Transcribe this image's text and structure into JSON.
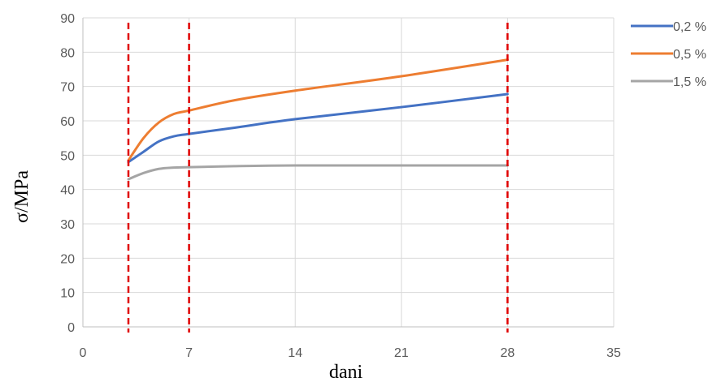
{
  "chart_data": {
    "type": "line",
    "title": "",
    "xlabel": "dani",
    "ylabel": "σ/MPa",
    "xlim": [
      0,
      35
    ],
    "ylim": [
      0,
      90
    ],
    "x_ticks": [
      0,
      7,
      14,
      21,
      28,
      35
    ],
    "y_ticks": [
      0,
      10,
      20,
      30,
      40,
      50,
      60,
      70,
      80,
      90
    ],
    "grid": true,
    "legend_position": "right",
    "series": [
      {
        "name": "0,2 %",
        "color": "#4472C4",
        "x": [
          3,
          4,
          5,
          6,
          7,
          10,
          14,
          21,
          28
        ],
        "y": [
          48,
          51,
          54,
          55.5,
          56.2,
          58,
          60.5,
          64,
          67.8
        ]
      },
      {
        "name": "0,5 %",
        "color": "#ED7D31",
        "x": [
          3,
          4,
          5,
          6,
          7,
          10,
          14,
          21,
          28
        ],
        "y": [
          48.5,
          55,
          59.5,
          62,
          63,
          66,
          68.8,
          73,
          77.8
        ]
      },
      {
        "name": "1,5 %",
        "color": "#A5A5A5",
        "x": [
          3,
          4,
          5,
          6,
          7,
          10,
          14,
          21,
          28
        ],
        "y": [
          43,
          44.8,
          46,
          46.4,
          46.5,
          46.8,
          47,
          47,
          47
        ]
      }
    ],
    "reference_lines": [
      {
        "x": 3,
        "color": "#E00000"
      },
      {
        "x": 7,
        "color": "#E00000"
      },
      {
        "x": 28,
        "color": "#E00000"
      }
    ]
  }
}
